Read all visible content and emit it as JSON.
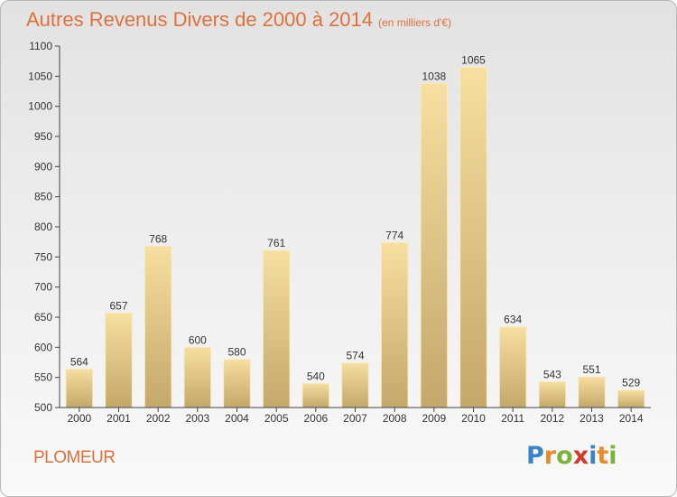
{
  "title": "Autres Revenus Divers de 2000 à 2014",
  "subtitle": "(en milliers d'€)",
  "commune": "PLOMEUR",
  "logo": {
    "letters": [
      "P",
      "r",
      "o",
      "x",
      "i",
      "t",
      "i"
    ],
    "colors": [
      "#3a84c6",
      "#e98a2c",
      "#7bb43a",
      "#d6392c",
      "#3a84c6",
      "#e98a2c",
      "#7bb43a"
    ]
  },
  "colors": {
    "title": "#e0703a",
    "bar_light": "#f5dd98",
    "bar_dark": "#c6a96c"
  },
  "chart_data": {
    "type": "bar",
    "title": "Autres Revenus Divers de 2000 à 2014",
    "subtitle": "(en milliers d'€)",
    "categories": [
      "2000",
      "2001",
      "2002",
      "2003",
      "2004",
      "2005",
      "2006",
      "2007",
      "2008",
      "2009",
      "2010",
      "2011",
      "2012",
      "2013",
      "2014"
    ],
    "values": [
      564,
      657,
      768,
      600,
      580,
      761,
      540,
      574,
      774,
      1038,
      1065,
      634,
      543,
      551,
      529
    ],
    "ylim": [
      500,
      1100
    ],
    "yticks": [
      500,
      550,
      600,
      650,
      700,
      750,
      800,
      850,
      900,
      950,
      1000,
      1050,
      1100
    ],
    "grid": false,
    "legend": "none"
  }
}
